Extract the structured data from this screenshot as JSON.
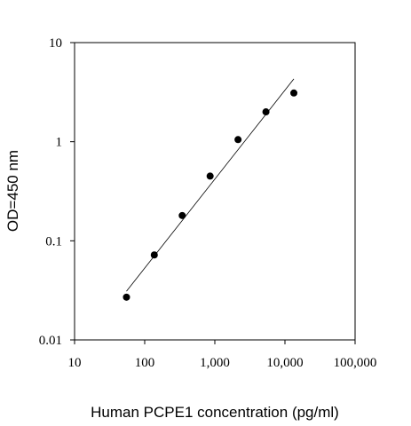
{
  "chart_data": {
    "type": "scatter",
    "xscale": "log",
    "yscale": "log",
    "xlim": [
      10,
      100000
    ],
    "ylim": [
      0.01,
      10
    ],
    "xlabel": "Human PCPE1 concentration (pg/ml)",
    "ylabel": "OD=450 nm",
    "xticks": [
      10,
      100,
      1000,
      10000,
      100000
    ],
    "xtick_labels": [
      "10",
      "100",
      "1,000",
      "10,000",
      "100,000"
    ],
    "yticks": [
      0.01,
      0.1,
      1,
      10
    ],
    "ytick_labels": [
      "0.01",
      "0.1",
      "1",
      "10"
    ],
    "grid": false,
    "series": [
      {
        "x": [
          55,
          137,
          343,
          857,
          2143,
          5357,
          13393
        ],
        "y": [
          0.027,
          0.072,
          0.18,
          0.45,
          1.05,
          2.0,
          3.1
        ]
      }
    ],
    "fit_line": {
      "x": [
        55,
        13393
      ],
      "y": [
        0.031,
        4.3
      ]
    }
  }
}
